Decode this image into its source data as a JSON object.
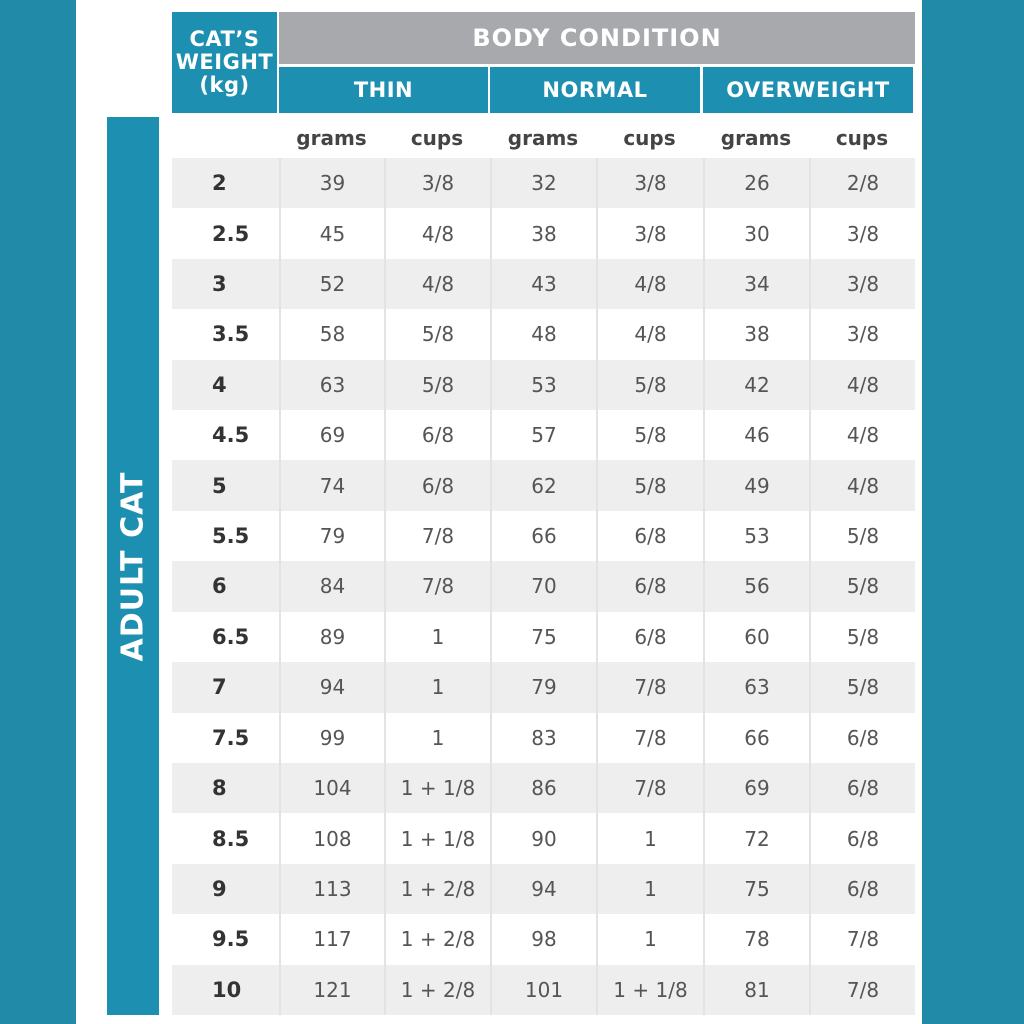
{
  "header": {
    "weight_label": [
      "CAT’S",
      "WEIGHT",
      "(kg)"
    ],
    "body_condition": "BODY CONDITION",
    "groups": [
      "THIN",
      "NORMAL",
      "OVERWEIGHT"
    ],
    "subheaders": [
      "grams",
      "cups",
      "grams",
      "cups",
      "grams",
      "cups"
    ]
  },
  "side_label": "ADULT CAT",
  "table": {
    "rows": [
      [
        "2",
        "39",
        "3/8",
        "32",
        "3/8",
        "26",
        "2/8"
      ],
      [
        "2.5",
        "45",
        "4/8",
        "38",
        "3/8",
        "30",
        "3/8"
      ],
      [
        "3",
        "52",
        "4/8",
        "43",
        "4/8",
        "34",
        "3/8"
      ],
      [
        "3.5",
        "58",
        "5/8",
        "48",
        "4/8",
        "38",
        "3/8"
      ],
      [
        "4",
        "63",
        "5/8",
        "53",
        "5/8",
        "42",
        "4/8"
      ],
      [
        "4.5",
        "69",
        "6/8",
        "57",
        "5/8",
        "46",
        "4/8"
      ],
      [
        "5",
        "74",
        "6/8",
        "62",
        "5/8",
        "49",
        "4/8"
      ],
      [
        "5.5",
        "79",
        "7/8",
        "66",
        "6/8",
        "53",
        "5/8"
      ],
      [
        "6",
        "84",
        "7/8",
        "70",
        "6/8",
        "56",
        "5/8"
      ],
      [
        "6.5",
        "89",
        "1",
        "75",
        "6/8",
        "60",
        "5/8"
      ],
      [
        "7",
        "94",
        "1",
        "79",
        "7/8",
        "63",
        "5/8"
      ],
      [
        "7.5",
        "99",
        "1",
        "83",
        "7/8",
        "66",
        "6/8"
      ],
      [
        "8",
        "104",
        "1 + 1/8",
        "86",
        "7/8",
        "69",
        "6/8"
      ],
      [
        "8.5",
        "108",
        "1 + 1/8",
        "90",
        "1",
        "72",
        "6/8"
      ],
      [
        "9",
        "113",
        "1 + 2/8",
        "94",
        "1",
        "75",
        "6/8"
      ],
      [
        "9.5",
        "117",
        "1 + 2/8",
        "98",
        "1",
        "78",
        "7/8"
      ],
      [
        "10",
        "121",
        "1 + 2/8",
        "101",
        "1 + 1/8",
        "81",
        "7/8"
      ]
    ]
  }
}
